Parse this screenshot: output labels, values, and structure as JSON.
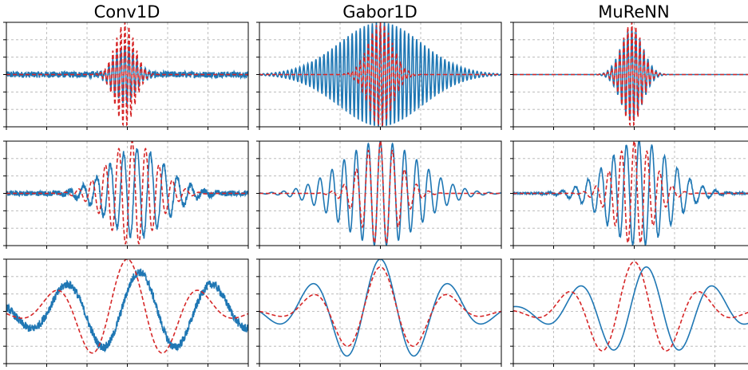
{
  "figure": {
    "columns": [
      "Conv1D",
      "Gabor1D",
      "MuReNN"
    ],
    "colors": {
      "blue": "#1f77b4",
      "red": "#d62728",
      "grid": "#b0b0b0",
      "frame": "#000000"
    }
  },
  "chart_data": [
    {
      "type": "line",
      "title": "Conv1D",
      "row": 1,
      "grid": true,
      "ylim": [
        -1,
        1
      ],
      "xlim": [
        0,
        1
      ],
      "series": [
        {
          "color": "#1f77b4",
          "style": "solid",
          "envelope_center": 0.49,
          "envelope_width": 0.045,
          "frequency": 60,
          "amplitude": 0.55,
          "noise": 0.06
        },
        {
          "color": "#d62728",
          "style": "dashed",
          "envelope_center": 0.49,
          "envelope_width": 0.04,
          "frequency": 60,
          "amplitude": 1.0
        }
      ]
    },
    {
      "type": "line",
      "title": "Gabor1D",
      "row": 1,
      "grid": true,
      "ylim": [
        -1,
        1
      ],
      "xlim": [
        0,
        1
      ],
      "series": [
        {
          "color": "#1f77b4",
          "style": "solid",
          "envelope_center": 0.5,
          "envelope_width": 0.17,
          "frequency": 60,
          "amplitude": 1.0
        },
        {
          "color": "#d62728",
          "style": "dashed",
          "envelope_center": 0.5,
          "envelope_width": 0.05,
          "frequency": 60,
          "amplitude": 1.0
        }
      ]
    },
    {
      "type": "line",
      "title": "MuReNN",
      "row": 1,
      "grid": true,
      "ylim": [
        -1,
        1
      ],
      "xlim": [
        0,
        1
      ],
      "series": [
        {
          "color": "#1f77b4",
          "style": "solid",
          "envelope_center": 0.49,
          "envelope_width": 0.045,
          "frequency": 60,
          "amplitude": 0.9
        },
        {
          "color": "#d62728",
          "style": "dashed",
          "envelope_center": 0.49,
          "envelope_width": 0.04,
          "frequency": 60,
          "amplitude": 1.0
        }
      ]
    },
    {
      "type": "line",
      "row": 2,
      "grid": true,
      "ylim": [
        -1,
        1
      ],
      "xlim": [
        0,
        1
      ],
      "series": [
        {
          "color": "#1f77b4",
          "style": "solid",
          "envelope_center": 0.54,
          "envelope_width": 0.12,
          "frequency": 18,
          "amplitude": 0.85,
          "noise": 0.05
        },
        {
          "color": "#d62728",
          "style": "dashed",
          "envelope_center": 0.52,
          "envelope_width": 0.1,
          "frequency": 18,
          "amplitude": 1.0
        }
      ]
    },
    {
      "type": "line",
      "row": 2,
      "grid": true,
      "ylim": [
        -1,
        1
      ],
      "xlim": [
        0,
        1
      ],
      "series": [
        {
          "color": "#1f77b4",
          "style": "solid",
          "envelope_center": 0.5,
          "envelope_width": 0.16,
          "frequency": 20,
          "amplitude": 1.0
        },
        {
          "color": "#d62728",
          "style": "dashed",
          "envelope_center": 0.5,
          "envelope_width": 0.08,
          "frequency": 20,
          "amplitude": 1.0
        }
      ]
    },
    {
      "type": "line",
      "row": 2,
      "grid": true,
      "ylim": [
        -1,
        1
      ],
      "xlim": [
        0,
        1
      ],
      "series": [
        {
          "color": "#1f77b4",
          "style": "solid",
          "envelope_center": 0.52,
          "envelope_width": 0.13,
          "frequency": 19,
          "amplitude": 1.0,
          "noise": 0.02
        },
        {
          "color": "#d62728",
          "style": "dashed",
          "envelope_center": 0.5,
          "envelope_width": 0.08,
          "frequency": 19,
          "amplitude": 1.0
        }
      ]
    },
    {
      "type": "line",
      "row": 3,
      "grid": true,
      "ylim": [
        -1,
        1
      ],
      "xlim": [
        0,
        1
      ],
      "series": [
        {
          "color": "#1f77b4",
          "style": "solid",
          "envelope_center": 0.55,
          "envelope_width": 0.35,
          "frequency": 3.3,
          "amplitude": 0.75,
          "noise": 0.08
        },
        {
          "color": "#d62728",
          "style": "dashed",
          "envelope_center": 0.5,
          "envelope_width": 0.22,
          "frequency": 3.3,
          "amplitude": 1.0
        }
      ]
    },
    {
      "type": "line",
      "row": 3,
      "grid": true,
      "ylim": [
        -1,
        1
      ],
      "xlim": [
        0,
        1
      ],
      "series": [
        {
          "color": "#1f77b4",
          "style": "solid",
          "envelope_center": 0.5,
          "envelope_width": 0.25,
          "frequency": 3.5,
          "amplitude": 1.0
        },
        {
          "color": "#d62728",
          "style": "dashed",
          "envelope_center": 0.5,
          "envelope_width": 0.2,
          "frequency": 3.5,
          "amplitude": 0.85
        }
      ]
    },
    {
      "type": "line",
      "row": 3,
      "grid": true,
      "ylim": [
        -1,
        1
      ],
      "xlim": [
        0,
        1
      ],
      "series": [
        {
          "color": "#1f77b4",
          "style": "solid",
          "envelope_center": 0.55,
          "envelope_width": 0.26,
          "frequency": 3.6,
          "amplitude": 0.85
        },
        {
          "color": "#d62728",
          "style": "dashed",
          "envelope_center": 0.5,
          "envelope_width": 0.2,
          "frequency": 3.6,
          "amplitude": 0.95
        }
      ]
    }
  ]
}
